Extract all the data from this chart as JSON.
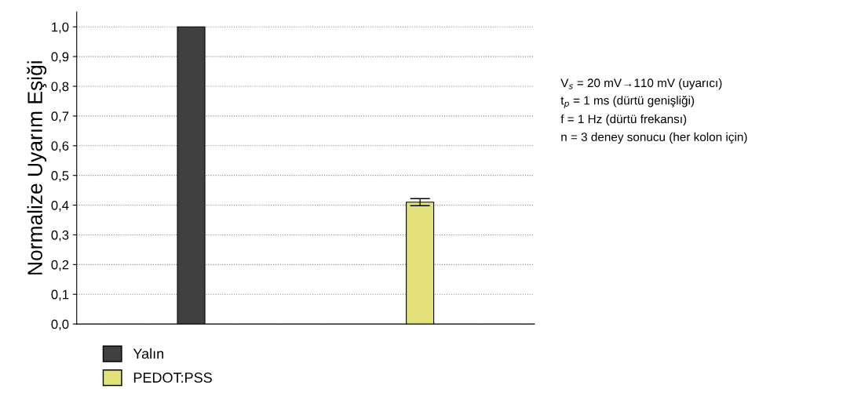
{
  "chart_data": {
    "type": "bar",
    "ylabel": "Normalize Uyarım Eşiği",
    "categories": [
      null,
      null
    ],
    "series": [
      {
        "name": "Yalın",
        "color": "#404040",
        "values": [
          1.0,
          null
        ]
      },
      {
        "name": "PEDOT:PSS",
        "color": "#e3e27a",
        "values": [
          null,
          0.41
        ],
        "errors": [
          null,
          0.012
        ]
      }
    ],
    "ylim": [
      0,
      1.05
    ],
    "yticks": [
      {
        "value": 0,
        "label": "0,0"
      },
      {
        "value": 0.1,
        "label": "0,1"
      },
      {
        "value": 0.2,
        "label": "0,2"
      },
      {
        "value": 0.3,
        "label": "0,3"
      },
      {
        "value": 0.4,
        "label": "0,4"
      },
      {
        "value": 0.5,
        "label": "0,5"
      },
      {
        "value": 0.6,
        "label": "0,6"
      },
      {
        "value": 0.7,
        "label": "0,7"
      },
      {
        "value": 0.8,
        "label": "0,8"
      },
      {
        "value": 0.9,
        "label": "0,9"
      },
      {
        "value": 1.0,
        "label": "1,0"
      }
    ],
    "grid": "y",
    "legend": "bottom left",
    "annotations": [
      "V$_{s}$ = 20 mV→110 mV (uyarıcı)",
      "t$_{p}$ = 1 ms (dürtü genişliği)",
      "f = 1 Hz (dürtü frekansı)",
      "n = 3 deney sonucu (her kolon için)"
    ]
  }
}
